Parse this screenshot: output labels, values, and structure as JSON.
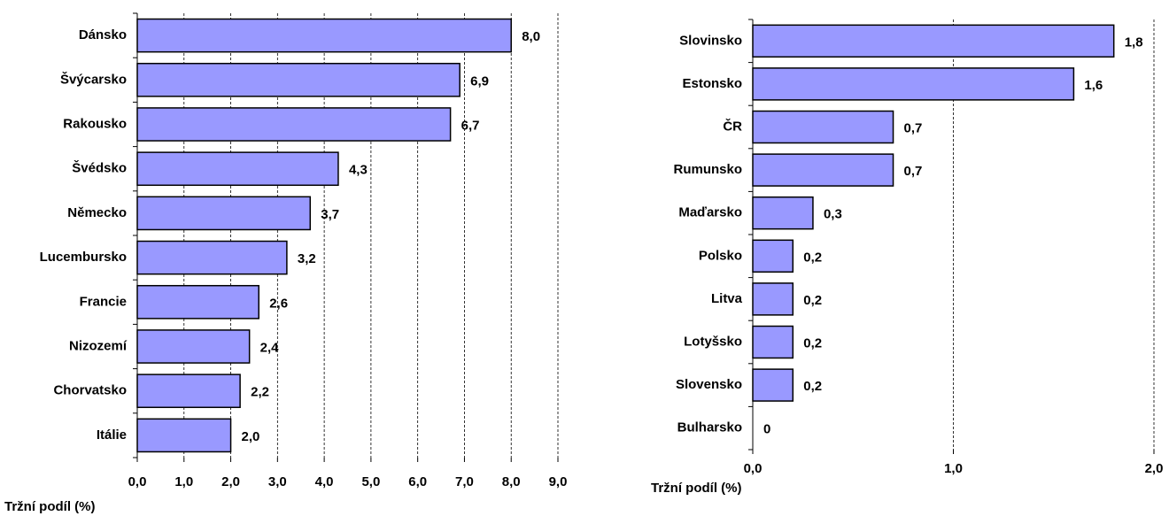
{
  "chart_data": [
    {
      "type": "bar",
      "orientation": "horizontal",
      "x_label": "Tržní podíl (%)",
      "categories": [
        "Dánsko",
        "Švýcarsko",
        "Rakousko",
        "Švédsko",
        "Německo",
        "Lucembursko",
        "Francie",
        "Nizozemí",
        "Chorvatsko",
        "Itálie"
      ],
      "values": [
        8.0,
        6.9,
        6.7,
        4.3,
        3.7,
        3.2,
        2.6,
        2.4,
        2.2,
        2.0
      ],
      "value_labels": [
        "8,0",
        "6,9",
        "6,7",
        "4,3",
        "3,7",
        "3,2",
        "2,6",
        "2,4",
        "2,2",
        "2,0"
      ],
      "color": "#9999ff",
      "grid": true,
      "xlim": [
        0,
        9
      ],
      "xticks": [
        {
          "value": 0,
          "label": "0,0"
        },
        {
          "value": 1,
          "label": "1,0"
        },
        {
          "value": 2,
          "label": "2,0"
        },
        {
          "value": 3,
          "label": "3,0"
        },
        {
          "value": 4,
          "label": "4,0"
        },
        {
          "value": 5,
          "label": "5,0"
        },
        {
          "value": 6,
          "label": "6,0"
        },
        {
          "value": 7,
          "label": "7,0"
        },
        {
          "value": 8,
          "label": "8,0"
        },
        {
          "value": 9,
          "label": "9,0"
        }
      ]
    },
    {
      "type": "bar",
      "orientation": "horizontal",
      "x_label": "Tržní podíl (%)",
      "categories": [
        "Slovinsko",
        "Estonsko",
        "ČR",
        "Rumunsko",
        "Maďarsko",
        "Polsko",
        "Litva",
        "Lotyšsko",
        "Slovensko",
        "Bulharsko"
      ],
      "values": [
        1.8,
        1.6,
        0.7,
        0.7,
        0.3,
        0.2,
        0.2,
        0.2,
        0.2,
        0
      ],
      "value_labels": [
        "1,8",
        "1,6",
        "0,7",
        "0,7",
        "0,3",
        "0,2",
        "0,2",
        "0,2",
        "0,2",
        "0"
      ],
      "color": "#9999ff",
      "grid": true,
      "xlim": [
        0,
        2
      ],
      "xticks": [
        {
          "value": 0,
          "label": "0,0"
        },
        {
          "value": 1,
          "label": "1,0"
        },
        {
          "value": 2,
          "label": "2,0"
        }
      ]
    }
  ]
}
